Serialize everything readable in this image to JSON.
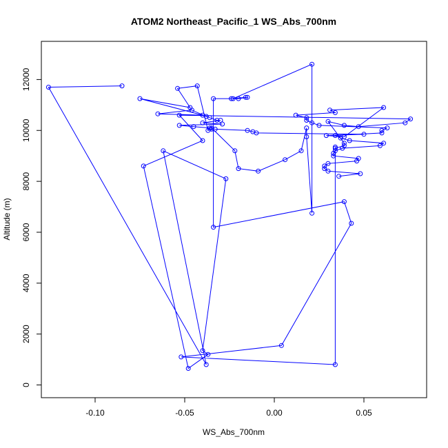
{
  "chart_data": {
    "type": "line",
    "title": "ATOM2 Northeast_Pacific_1 WS_Abs_700nm",
    "xlabel": "WS_Abs_700nm",
    "ylabel": "Altitude (m)",
    "xlim": [
      -0.13,
      0.085
    ],
    "ylim": [
      -500,
      13500
    ],
    "x_ticks": [
      -0.1,
      -0.05,
      0.0,
      0.05
    ],
    "x_tick_labels": [
      "-0.10",
      "-0.05",
      "0.00",
      "0.05"
    ],
    "y_ticks": [
      0,
      2000,
      4000,
      6000,
      8000,
      10000,
      12000
    ],
    "y_tick_labels": [
      "0",
      "2000",
      "4000",
      "6000",
      "8000",
      "10000",
      "12000"
    ],
    "series_color": "#0000ff",
    "markers": "open-circle",
    "series": [
      {
        "x": [
          -0.085,
          -0.126,
          -0.038,
          -0.062,
          -0.027,
          -0.04,
          -0.037,
          -0.048,
          -0.073,
          -0.04,
          -0.053,
          0.076,
          0.073,
          0.047,
          0.039,
          0.03,
          0.039,
          0.039,
          0.034,
          0.034,
          0.034,
          -0.052,
          0.004,
          0.043,
          0.039,
          -0.034,
          -0.034,
          -0.024,
          -0.016,
          -0.015,
          -0.02,
          -0.023,
          0.021,
          0.021,
          0.018,
          0.018,
          0.015,
          0.006,
          -0.009,
          -0.02,
          -0.022,
          -0.035,
          -0.035,
          -0.037,
          -0.043,
          -0.054,
          -0.047,
          -0.075,
          -0.04,
          -0.065,
          -0.046,
          -0.038,
          -0.036,
          -0.032,
          -0.03,
          -0.04,
          -0.029,
          -0.053,
          -0.045,
          -0.036,
          -0.033,
          -0.015,
          -0.012,
          -0.01,
          0.05,
          0.029,
          0.039,
          0.061,
          0.031,
          0.034,
          0.012,
          0.018,
          0.018,
          0.021,
          0.025,
          0.063,
          0.06,
          0.06,
          0.034,
          0.037,
          0.042,
          0.061,
          0.059,
          0.038,
          0.034,
          0.033,
          0.033,
          0.047,
          0.046,
          0.03,
          0.028,
          0.028,
          0.03,
          0.048,
          0.036
        ],
        "y": [
          11750,
          11700,
          800,
          9200,
          8100,
          1350,
          1200,
          650,
          8600,
          9600,
          10600,
          10450,
          10300,
          10150,
          10200,
          10350,
          9500,
          9400,
          9300,
          9350,
          800,
          1100,
          1550,
          6350,
          7200,
          6200,
          11250,
          11250,
          11300,
          11300,
          11250,
          11250,
          12600,
          6750,
          9750,
          10100,
          9200,
          8850,
          8400,
          8500,
          9200,
          10100,
          10050,
          10000,
          11750,
          11650,
          10900,
          11250,
          10600,
          10650,
          10800,
          10550,
          10500,
          10400,
          10400,
          10300,
          10250,
          10200,
          10150,
          10100,
          10050,
          10000,
          9950,
          9900,
          9850,
          9800,
          9750,
          10900,
          10800,
          10700,
          10600,
          10500,
          10400,
          10300,
          10200,
          10100,
          10000,
          9900,
          9800,
          9700,
          9600,
          9500,
          9400,
          9300,
          9200,
          9100,
          9000,
          8900,
          8800,
          8700,
          8600,
          8500,
          8400,
          8300,
          8200
        ]
      }
    ]
  }
}
